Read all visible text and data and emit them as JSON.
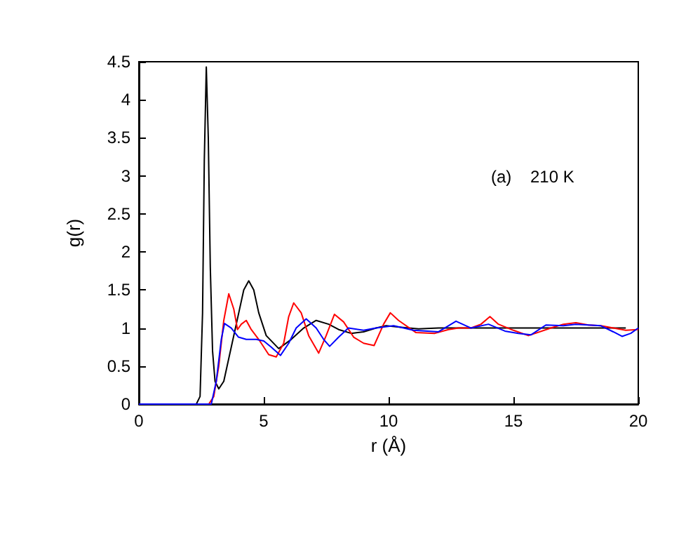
{
  "chart_data": {
    "type": "line",
    "xlabel": "r (Å)",
    "ylabel": "g(r)",
    "annotations": [
      "(a)    210 K"
    ],
    "xlim": [
      0,
      20
    ],
    "xticks": [
      0,
      5,
      10,
      15,
      20
    ],
    "ylim": [
      0,
      4.5
    ],
    "yticks": [
      0,
      0.5,
      1,
      1.5,
      2,
      2.5,
      3,
      3.5,
      4,
      4.5
    ],
    "grid": false,
    "marker": "none",
    "line_style": "solid",
    "series": [
      {
        "color": "#000000",
        "x": [
          0,
          2.3,
          2.45,
          2.55,
          2.62,
          2.7,
          2.78,
          2.86,
          2.95,
          3.05,
          3.2,
          3.4,
          3.7,
          4.0,
          4.2,
          4.4,
          4.6,
          4.8,
          5.1,
          5.6,
          6.1,
          6.6,
          7.1,
          7.6,
          8.0,
          8.5,
          9.0,
          9.5,
          9.9,
          10.5,
          11.2,
          12,
          13,
          14,
          15,
          16,
          17,
          18,
          19,
          19.5
        ],
        "values": [
          0,
          0,
          0.1,
          1.2,
          3.2,
          4.43,
          3.5,
          1.8,
          0.7,
          0.3,
          0.2,
          0.3,
          0.75,
          1.2,
          1.5,
          1.62,
          1.5,
          1.2,
          0.9,
          0.73,
          0.85,
          1.0,
          1.1,
          1.05,
          0.98,
          0.93,
          0.95,
          1.0,
          1.03,
          1.01,
          0.99,
          1.0,
          1.0,
          1.0,
          1.0,
          1.0,
          1.0,
          1.0,
          1.0,
          1.0
        ]
      },
      {
        "color": "#ff0000",
        "x": [
          0,
          2.8,
          3.0,
          3.2,
          3.4,
          3.6,
          3.8,
          3.95,
          4.1,
          4.3,
          4.5,
          4.8,
          5.2,
          5.5,
          5.8,
          6.0,
          6.2,
          6.5,
          6.8,
          7.2,
          7.5,
          7.83,
          8.2,
          8.6,
          9.0,
          9.42,
          9.8,
          10.07,
          10.4,
          11.1,
          11.85,
          12.4,
          12.8,
          13.3,
          13.7,
          14.06,
          14.4,
          15.0,
          15.6,
          16.5,
          17.0,
          17.5,
          18.0,
          18.5,
          19.0,
          19.5,
          20
        ],
        "values": [
          0,
          0,
          0.1,
          0.5,
          1.1,
          1.45,
          1.25,
          0.98,
          1.05,
          1.1,
          0.98,
          0.85,
          0.65,
          0.62,
          0.8,
          1.15,
          1.33,
          1.2,
          0.9,
          0.67,
          0.9,
          1.18,
          1.08,
          0.88,
          0.8,
          0.77,
          1.05,
          1.2,
          1.1,
          0.94,
          0.93,
          0.98,
          1.0,
          1.0,
          1.05,
          1.15,
          1.05,
          0.97,
          0.9,
          1.0,
          1.05,
          1.07,
          1.04,
          1.03,
          1.0,
          0.97,
          0.98
        ]
      },
      {
        "color": "#0000ff",
        "x": [
          0,
          2.9,
          3.1,
          3.3,
          3.43,
          3.7,
          3.99,
          4.3,
          4.7,
          5.0,
          5.3,
          5.67,
          6.0,
          6.3,
          6.7,
          7.1,
          7.4,
          7.64,
          8.0,
          8.39,
          9.0,
          9.5,
          10.2,
          11.0,
          12.0,
          12.7,
          13.3,
          14.0,
          14.66,
          15.2,
          15.7,
          16.3,
          17.0,
          17.5,
          18.0,
          18.5,
          19.0,
          19.35,
          19.7,
          20
        ],
        "values": [
          0,
          0,
          0.3,
          0.85,
          1.06,
          1.0,
          0.88,
          0.85,
          0.85,
          0.83,
          0.75,
          0.64,
          0.8,
          1.0,
          1.12,
          1.0,
          0.85,
          0.76,
          0.88,
          1.0,
          0.97,
          1.0,
          1.03,
          0.97,
          0.95,
          1.09,
          1.0,
          1.05,
          0.96,
          0.93,
          0.91,
          1.04,
          1.03,
          1.05,
          1.04,
          1.03,
          0.95,
          0.89,
          0.93,
          1.0
        ]
      }
    ]
  }
}
